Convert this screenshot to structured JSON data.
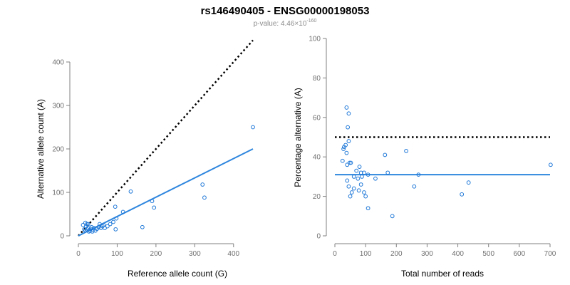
{
  "figure": {
    "title": "rs146490405 - ENSG00000198053",
    "subtitle_prefix": "p-value: 4.46",
    "subtitle_times": "×",
    "subtitle_base": "10",
    "subtitle_exponent": "-160"
  },
  "colors": {
    "points": "#1f78d8",
    "fit_line": "#2e86de",
    "reference_line": "#000000",
    "axis": "#808080"
  },
  "chart_data": [
    {
      "type": "scatter",
      "xlabel": "Reference allele count (G)",
      "ylabel": "Alternative allele count (A)",
      "xlim": [
        0,
        450
      ],
      "ylim": [
        0,
        400
      ],
      "xticks": [
        0,
        100,
        200,
        300,
        400
      ],
      "yticks": [
        0,
        100,
        200,
        300,
        400
      ],
      "grid": false,
      "points": [
        [
          12,
          25
        ],
        [
          18,
          30
        ],
        [
          20,
          22
        ],
        [
          22,
          27
        ],
        [
          25,
          27
        ],
        [
          15,
          15
        ],
        [
          18,
          12
        ],
        [
          22,
          15
        ],
        [
          25,
          18
        ],
        [
          27,
          10
        ],
        [
          30,
          12
        ],
        [
          32,
          16
        ],
        [
          34,
          20
        ],
        [
          36,
          10
        ],
        [
          38,
          14
        ],
        [
          40,
          18
        ],
        [
          44,
          12
        ],
        [
          48,
          16
        ],
        [
          52,
          20
        ],
        [
          55,
          27
        ],
        [
          58,
          18
        ],
        [
          62,
          22
        ],
        [
          65,
          25
        ],
        [
          68,
          18
        ],
        [
          75,
          22
        ],
        [
          82,
          27
        ],
        [
          90,
          32
        ],
        [
          95,
          67
        ],
        [
          96,
          15
        ],
        [
          98,
          40
        ],
        [
          115,
          55
        ],
        [
          135,
          102
        ],
        [
          165,
          20
        ],
        [
          190,
          80
        ],
        [
          195,
          65
        ],
        [
          320,
          118
        ],
        [
          325,
          88
        ],
        [
          450,
          250
        ]
      ],
      "fit_line": [
        [
          0,
          0
        ],
        [
          450,
          200
        ]
      ],
      "reference_line": [
        [
          0,
          0
        ],
        [
          450,
          450
        ]
      ]
    },
    {
      "type": "scatter",
      "xlabel": "Total number of reads",
      "ylabel": "Percentage alternative (A)",
      "xlim": [
        0,
        700
      ],
      "ylim": [
        0,
        100
      ],
      "xticks": [
        0,
        100,
        200,
        300,
        400,
        500,
        600,
        700
      ],
      "yticks": [
        0,
        20,
        40,
        60,
        80,
        100
      ],
      "grid": false,
      "points": [
        [
          38,
          65
        ],
        [
          45,
          62
        ],
        [
          42,
          55
        ],
        [
          45,
          48
        ],
        [
          30,
          45
        ],
        [
          35,
          46
        ],
        [
          28,
          44
        ],
        [
          38,
          42
        ],
        [
          25,
          38
        ],
        [
          40,
          36
        ],
        [
          48,
          37
        ],
        [
          52,
          37
        ],
        [
          62,
          30
        ],
        [
          70,
          33
        ],
        [
          80,
          35
        ],
        [
          85,
          32
        ],
        [
          95,
          32
        ],
        [
          108,
          31
        ],
        [
          88,
          30
        ],
        [
          75,
          29
        ],
        [
          40,
          28
        ],
        [
          45,
          25
        ],
        [
          55,
          22
        ],
        [
          62,
          24
        ],
        [
          78,
          23
        ],
        [
          85,
          26
        ],
        [
          95,
          22
        ],
        [
          100,
          20
        ],
        [
          50,
          20
        ],
        [
          108,
          14
        ],
        [
          132,
          29
        ],
        [
          163,
          41
        ],
        [
          172,
          32
        ],
        [
          187,
          10
        ],
        [
          232,
          43
        ],
        [
          258,
          25
        ],
        [
          272,
          31
        ],
        [
          413,
          21
        ],
        [
          435,
          27
        ],
        [
          702,
          36
        ]
      ],
      "fit_line": [
        [
          0,
          31
        ],
        [
          700,
          31
        ]
      ],
      "reference_line": [
        [
          0,
          50
        ],
        [
          700,
          50
        ]
      ]
    }
  ]
}
